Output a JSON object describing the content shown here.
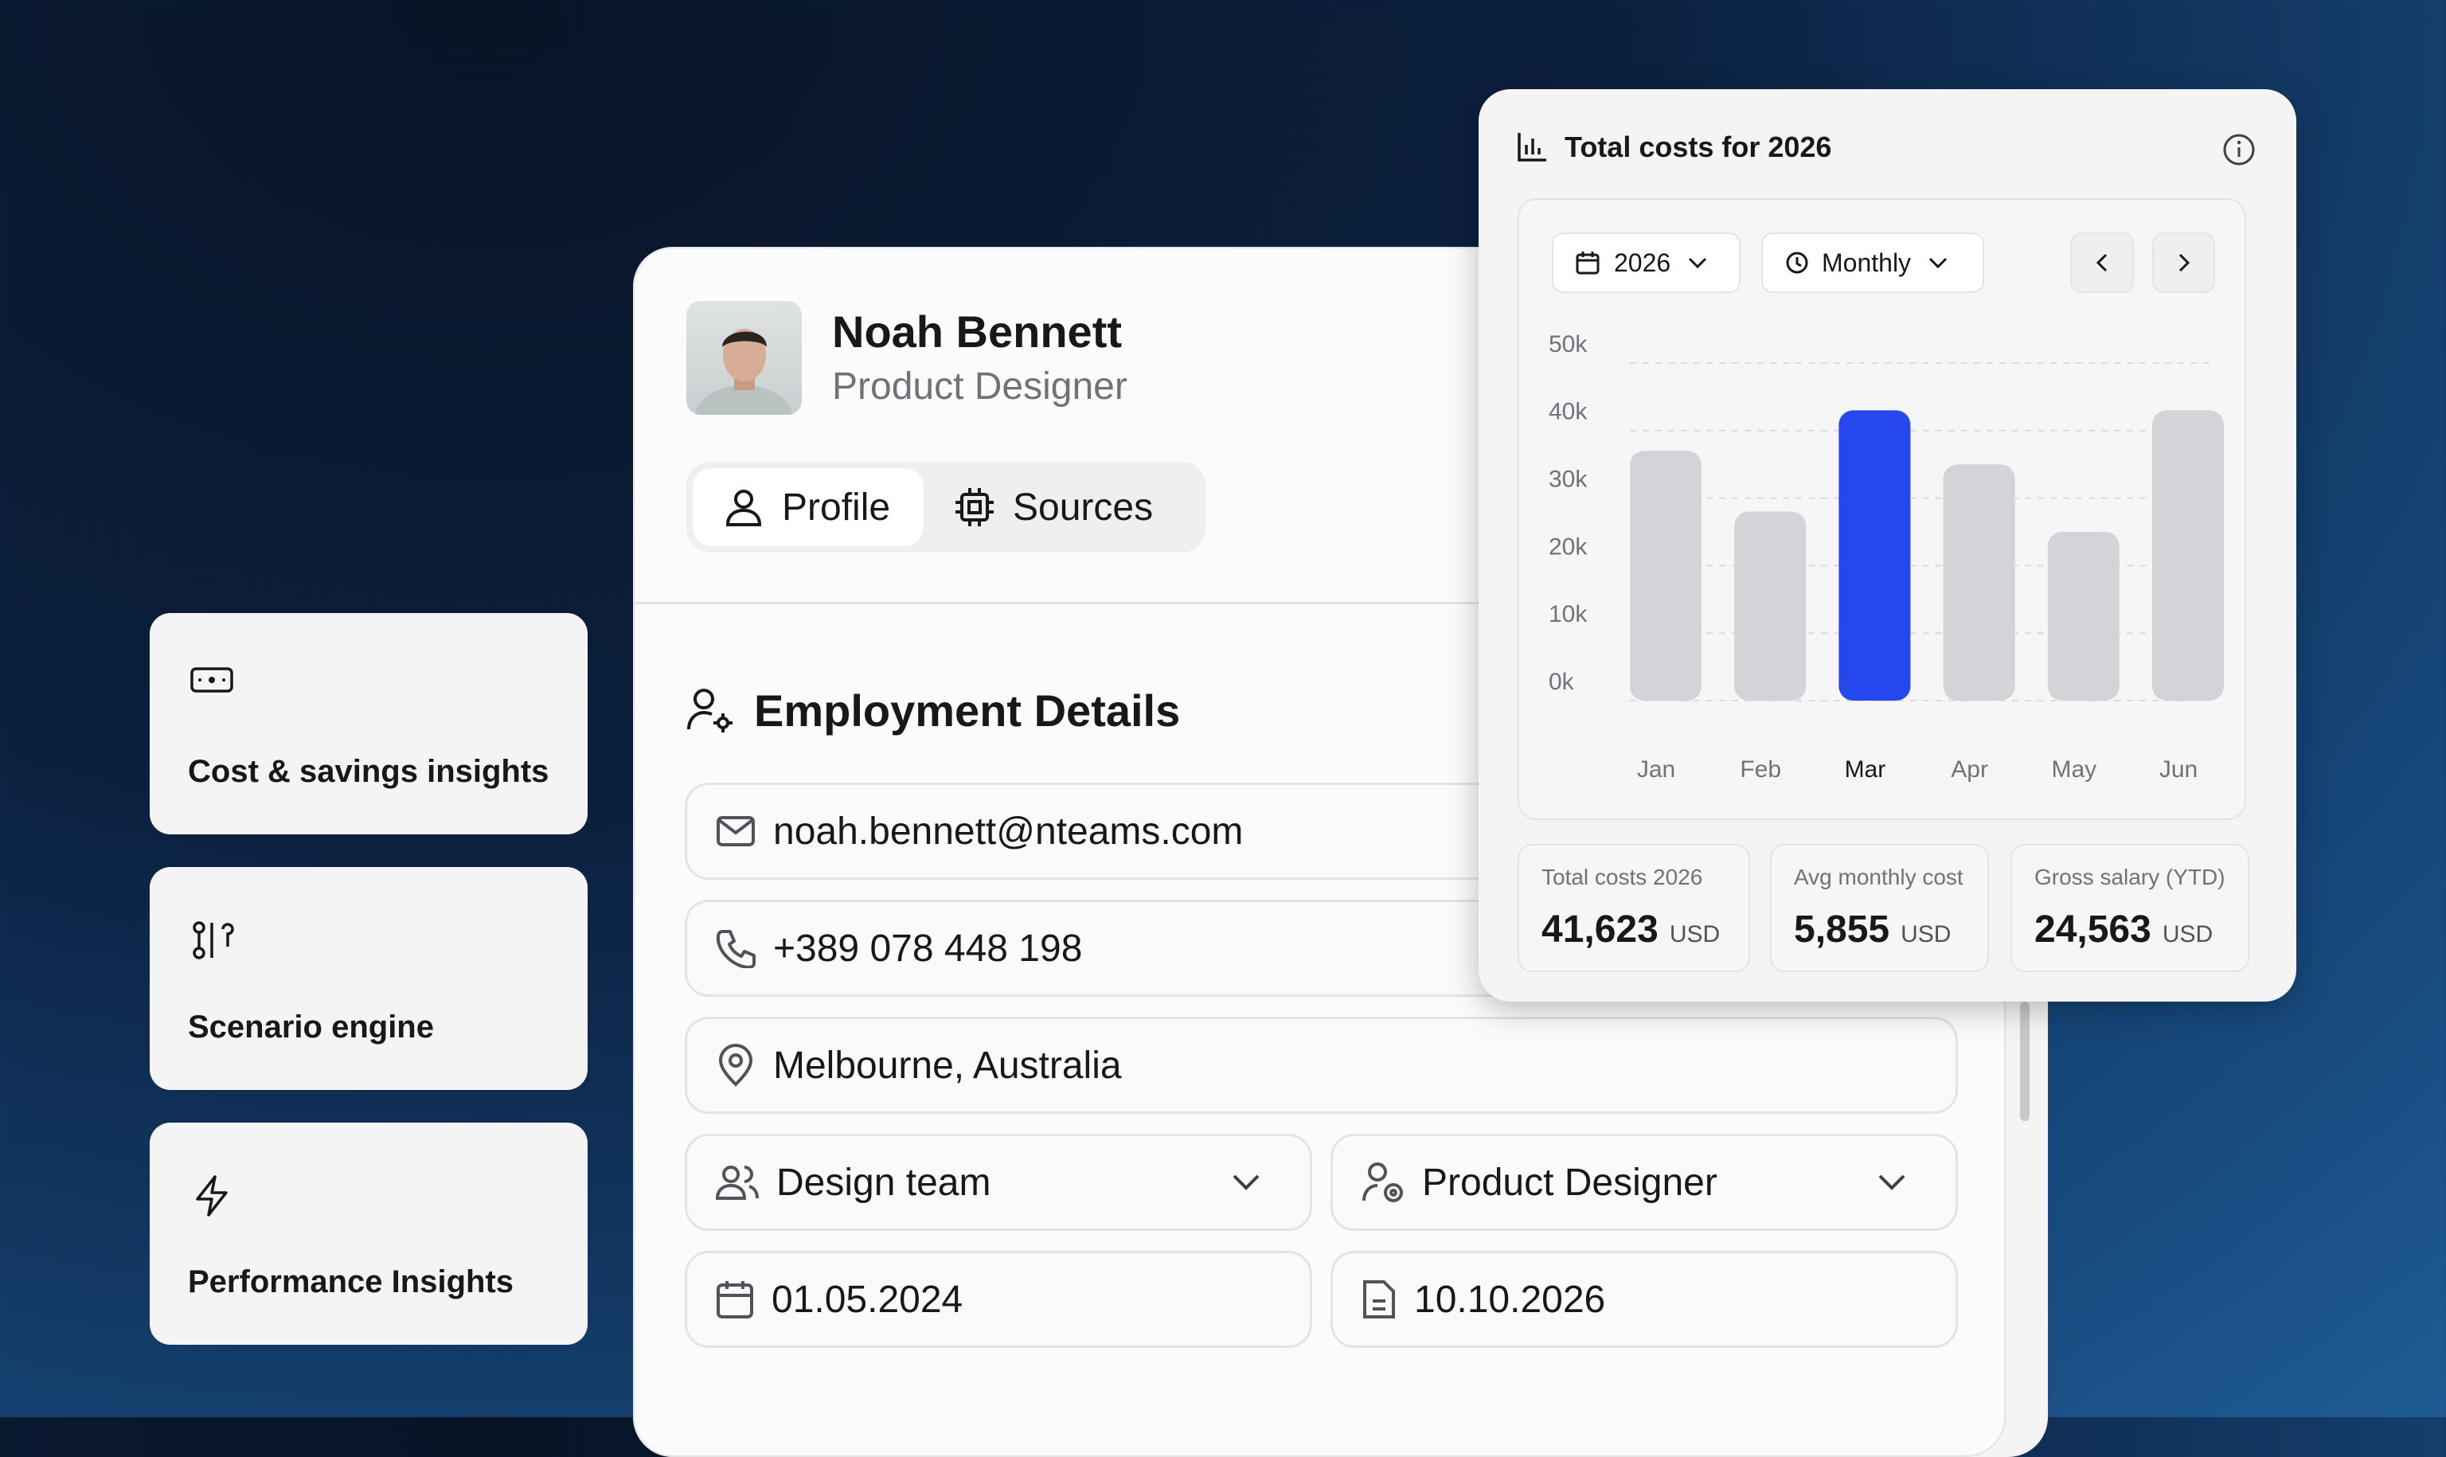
{
  "features": [
    {
      "label": "Cost & savings insights"
    },
    {
      "label": "Scenario engine"
    },
    {
      "label": "Performance Insights"
    }
  ],
  "profile": {
    "name": "Noah Bennett",
    "role": "Product Designer"
  },
  "tabs": [
    "Profile",
    "Sources"
  ],
  "section_title": "Employment Details",
  "fields": {
    "email": "noah.bennett@nteams.com",
    "phone": "+389 078 448 198",
    "location": "Melbourne, Australia",
    "team": "Design team",
    "position": "Product Designer",
    "start_date": "01.05.2024",
    "end_date": "10.10.2026"
  },
  "cost_panel": {
    "title": "Total costs for 2026",
    "year_filter": "2026",
    "period_filter": "Monthly",
    "chart": {
      "type": "bar",
      "categories": [
        "Jan",
        "Feb",
        "Mar",
        "Apr",
        "May",
        "Jun"
      ],
      "values": [
        37000,
        28000,
        43000,
        35000,
        25000,
        43000
      ],
      "colors": [
        "#d4d4d8",
        "#d4d4d8",
        "#2447ee",
        "#d4d4d8",
        "#d4d4d8",
        "#d4d4d8"
      ],
      "ylim": [
        0,
        50000
      ],
      "yticks": [
        {
          "value": 0,
          "label": "0k"
        },
        {
          "value": 10000,
          "label": "10k"
        },
        {
          "value": 20000,
          "label": "20k"
        },
        {
          "value": 30000,
          "label": "30k"
        },
        {
          "value": 40000,
          "label": "40k"
        },
        {
          "value": 50000,
          "label": "50k"
        }
      ],
      "grid": true
    },
    "stats": [
      {
        "label": "Total costs 2026",
        "value": "41,623",
        "unit": "USD"
      },
      {
        "label": "Avg monthly cost",
        "value": "5,855",
        "unit": "USD"
      },
      {
        "label": "Gross salary (YTD)",
        "value": "24,563",
        "unit": "USD"
      }
    ]
  }
}
